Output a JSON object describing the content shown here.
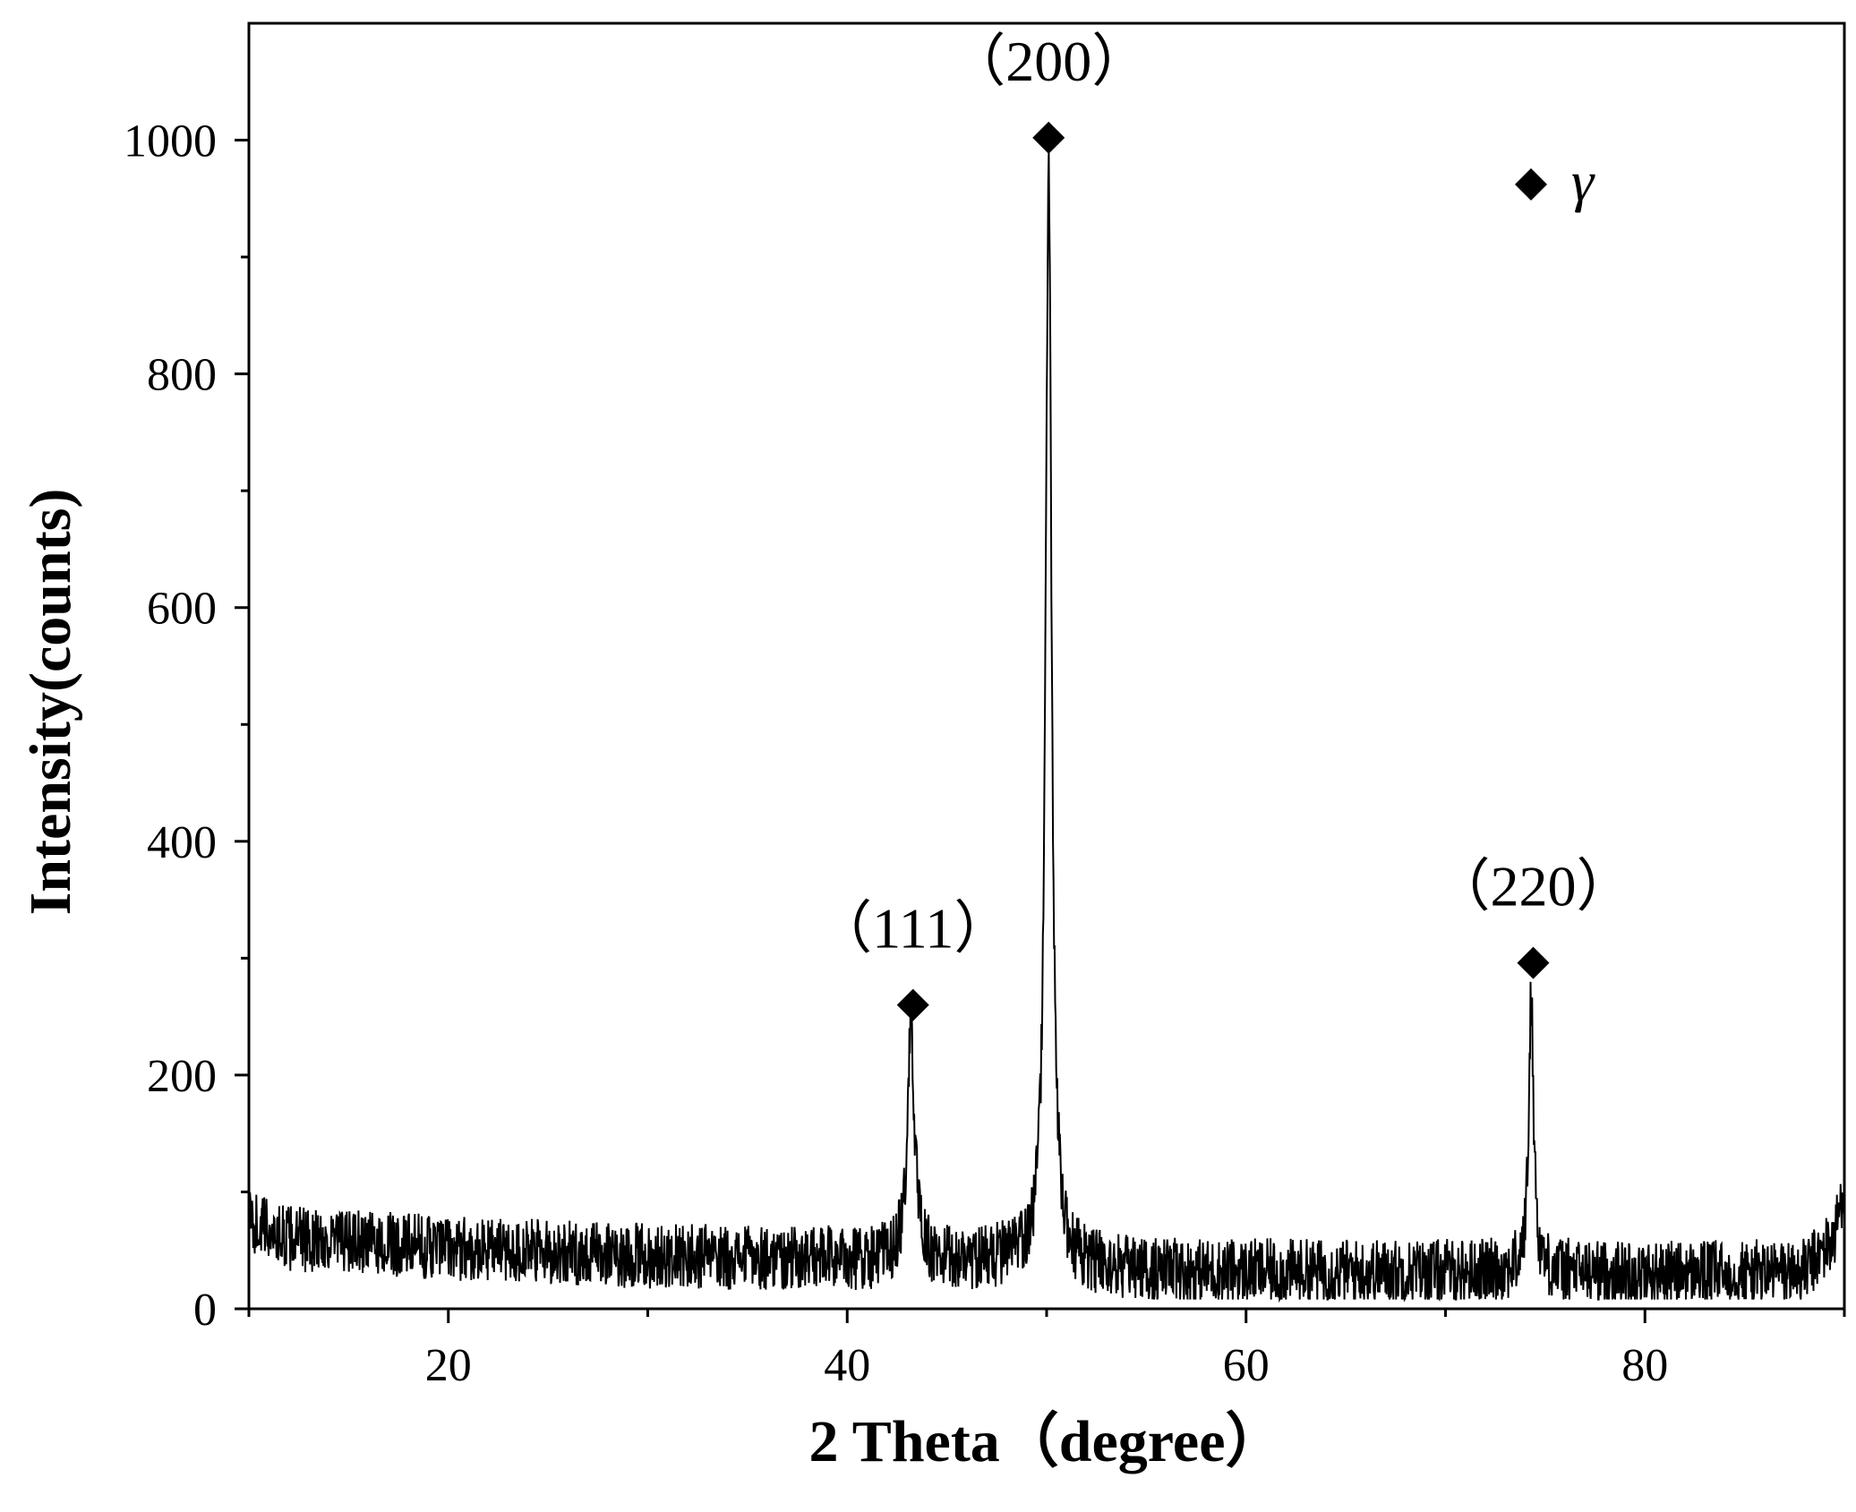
{
  "chart_data": {
    "type": "line",
    "xlabel": "2 Theta（degree）",
    "ylabel": "Intensity(counts)",
    "xlim": [
      10,
      90
    ],
    "ylim": [
      0,
      1100
    ],
    "x_ticks": [
      20,
      40,
      60,
      80
    ],
    "x_minor_ticks": [
      10,
      30,
      50,
      70,
      90
    ],
    "y_ticks": [
      0,
      200,
      400,
      600,
      800,
      1000
    ],
    "y_minor_ticks": [
      100,
      300,
      500,
      700,
      900
    ],
    "grid": false,
    "line_color": "#000000",
    "series": [
      {
        "background": [
          [
            10,
            75
          ],
          [
            12,
            60
          ],
          [
            20,
            52
          ],
          [
            30,
            45
          ],
          [
            42,
            42
          ],
          [
            45,
            40
          ],
          [
            48,
            42
          ],
          [
            50.5,
            38
          ],
          [
            55,
            32
          ],
          [
            65,
            32
          ],
          [
            73,
            32
          ],
          [
            75.5,
            32
          ],
          [
            80,
            30
          ],
          [
            88,
            32
          ],
          [
            89.5,
            60
          ],
          [
            90,
            110
          ]
        ],
        "noise_amplitude": 28,
        "peaks": [
          {
            "x": 43.2,
            "y": 238,
            "width": 0.22
          },
          {
            "x": 50.1,
            "y": 975,
            "width": 0.18
          },
          {
            "x": 74.3,
            "y": 265,
            "width": 0.15
          }
        ]
      }
    ],
    "annotations": [
      {
        "text": "（111）",
        "x": 43.3,
        "y": 260
      },
      {
        "text": "（200）",
        "x": 50.1,
        "y": 1002
      },
      {
        "text": "（220）",
        "x": 74.4,
        "y": 296
      }
    ],
    "marker_symbol": "diamond",
    "legend": {
      "symbol": "diamond",
      "label": "γ",
      "placement": "top-right"
    }
  }
}
